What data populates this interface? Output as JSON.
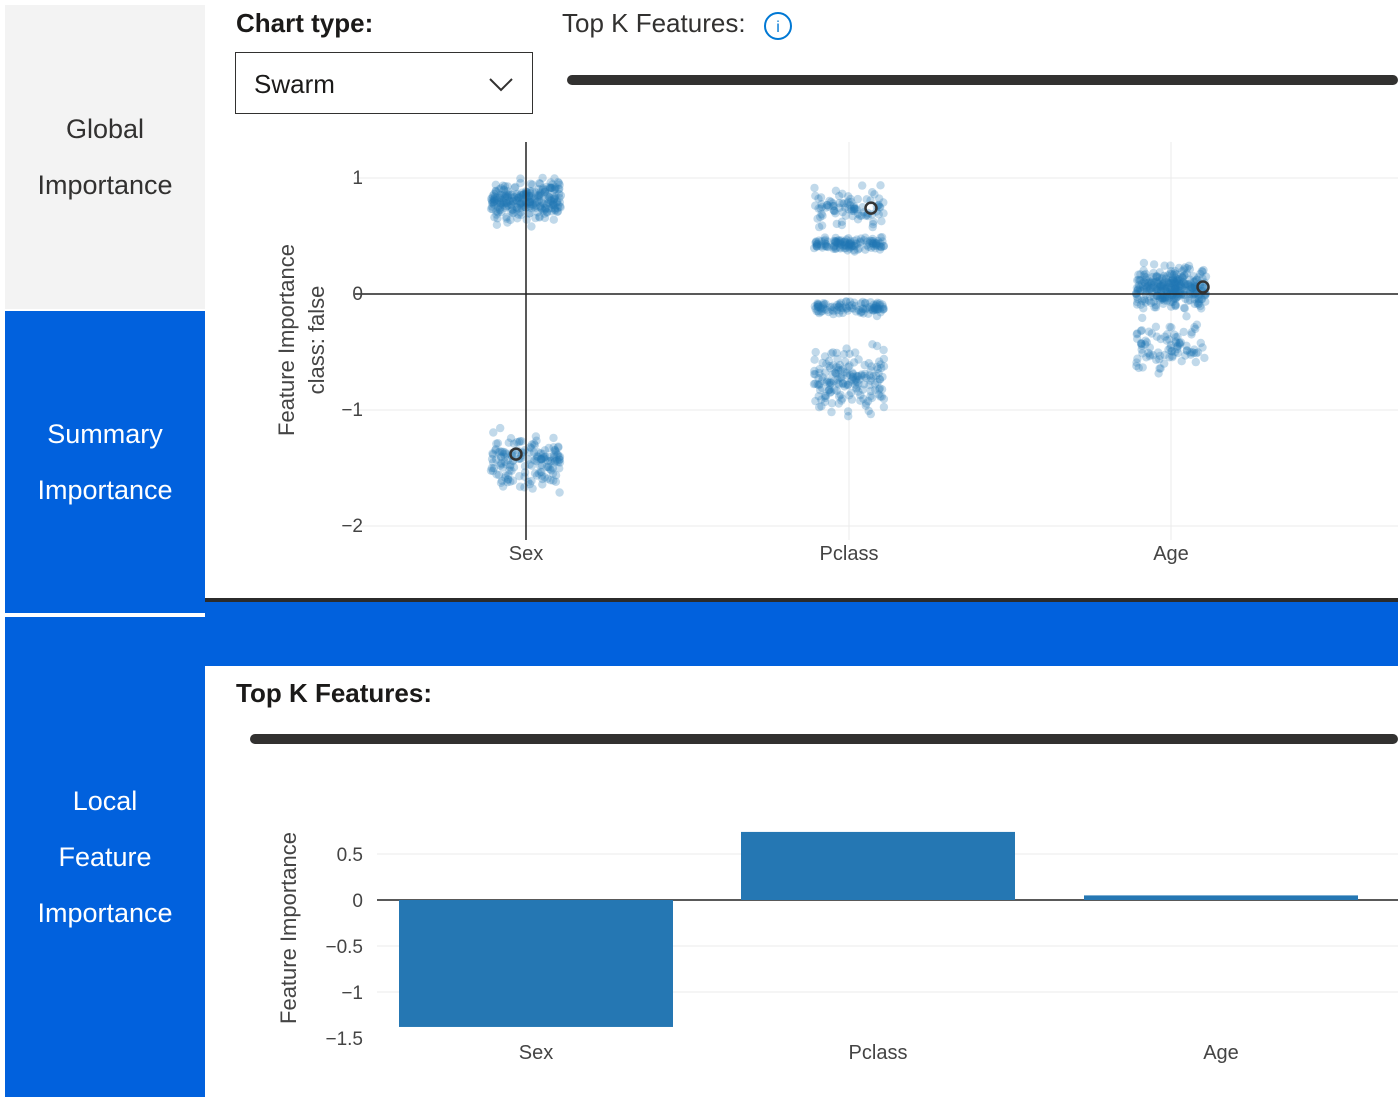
{
  "nav": {
    "global": [
      "Global",
      "Importance"
    ],
    "summary": [
      "Summary",
      "Importance"
    ],
    "local": [
      "Local",
      "Feature",
      "Importance"
    ]
  },
  "controls": {
    "chart_type_label": "Chart type:",
    "chart_type_value": "Swarm",
    "top_k_label": "Top K Features:",
    "info_icon_glyph": "i",
    "top_k_label_local": "Top K Features:"
  },
  "colors": {
    "nav_selected_bg": "#0161dd",
    "nav_idle_bg": "#f3f3f3",
    "point": "#1f77b4",
    "bar": "#2577b3"
  },
  "chart_data": [
    {
      "type": "scatter",
      "chart_kind": "swarm",
      "categories": [
        "Sex",
        "Pclass",
        "Age"
      ],
      "ylabel_lines": [
        "Feature Importance",
        "class:  false"
      ],
      "ylim": [
        -2.15,
        1.3
      ],
      "yticks": [
        1,
        0,
        -1,
        -2
      ],
      "ytick_labels": [
        "1",
        "0",
        "−1",
        "−2"
      ],
      "grid": true,
      "groups": [
        {
          "category": "Sex",
          "clusters": [
            {
              "center": 0.8,
              "spread": 0.13,
              "count": 260
            },
            {
              "center": -1.45,
              "spread": 0.2,
              "count": 160
            }
          ],
          "selected": -1.38
        },
        {
          "category": "Pclass",
          "clusters": [
            {
              "center": 0.43,
              "spread": 0.05,
              "count": 120
            },
            {
              "center": 0.75,
              "spread": 0.13,
              "count": 90
            },
            {
              "center": -0.12,
              "spread": 0.05,
              "count": 100
            },
            {
              "center": -0.75,
              "spread": 0.25,
              "count": 170
            }
          ],
          "selected": 0.74
        },
        {
          "category": "Age",
          "clusters": [
            {
              "center": 0.05,
              "spread": 0.15,
              "count": 300
            },
            {
              "center": -0.45,
              "spread": 0.2,
              "count": 90
            }
          ],
          "selected": 0.06
        }
      ]
    },
    {
      "type": "bar",
      "categories": [
        "Sex",
        "Pclass",
        "Age"
      ],
      "values": [
        -1.38,
        0.74,
        0.05
      ],
      "ylabel": "Feature Importance",
      "ylim": [
        -1.5,
        0.75
      ],
      "yticks": [
        0.5,
        0,
        -0.5,
        -1,
        -1.5
      ],
      "ytick_labels": [
        "0.5",
        "0",
        "−0.5",
        "−1",
        "−1.5"
      ],
      "grid": true
    }
  ]
}
